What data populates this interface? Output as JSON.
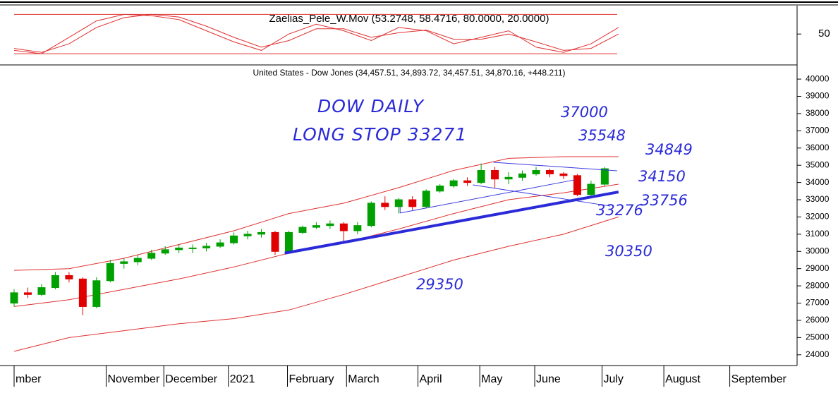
{
  "chart_data": [
    {
      "type": "line",
      "title": "Zaelias_Pele_W.Mov (53.2748, 58.4716, 80.0000, 20.0000)",
      "xlim": [
        0,
        57
      ],
      "ylim": [
        5,
        89
      ],
      "yticks": [
        50
      ],
      "levels": [
        80,
        20
      ],
      "level_color": "#e03030",
      "x": [
        0,
        2,
        4,
        6,
        8,
        10,
        12,
        14,
        16,
        18,
        20,
        22,
        24,
        26,
        28,
        30,
        32,
        34,
        36,
        38,
        40,
        42,
        44
      ],
      "series": [
        {
          "name": "fast",
          "color": "#e03030",
          "values": [
            25,
            20,
            45,
            70,
            80,
            78,
            72,
            55,
            38,
            25,
            50,
            65,
            55,
            40,
            60,
            55,
            35,
            45,
            55,
            30,
            22,
            35,
            60
          ]
        },
        {
          "name": "slow",
          "color": "#e03030",
          "values": [
            28,
            22,
            35,
            60,
            75,
            80,
            76,
            62,
            45,
            30,
            40,
            58,
            58,
            45,
            52,
            56,
            42,
            42,
            50,
            38,
            25,
            28,
            50
          ]
        }
      ]
    },
    {
      "type": "candlestick",
      "title": "United States - Dow Jones (34,457.51, 34,893.72, 34,457.51, 34,870.16, +448.211)",
      "xlim": [
        0,
        57
      ],
      "ylim": [
        23500,
        40700
      ],
      "yticks": [
        24000,
        25000,
        26000,
        27000,
        28000,
        29000,
        30000,
        31000,
        32000,
        33000,
        34000,
        35000,
        36000,
        37000,
        38000,
        39000,
        40000
      ],
      "xticks": [
        {
          "value": 0,
          "label": "mber"
        },
        {
          "value": 6.7,
          "label": "November"
        },
        {
          "value": 10.9,
          "label": "December"
        },
        {
          "value": 15.6,
          "label": "2021"
        },
        {
          "value": 19.9,
          "label": "February"
        },
        {
          "value": 24.2,
          "label": "March"
        },
        {
          "value": 29.4,
          "label": "April"
        },
        {
          "value": 33.9,
          "label": "May"
        },
        {
          "value": 37.9,
          "label": "June"
        },
        {
          "value": 42.8,
          "label": "July"
        },
        {
          "value": 47.3,
          "label": "August"
        },
        {
          "value": 52.1,
          "label": "September"
        }
      ],
      "up_color": "#00a000",
      "down_color": "#e00000",
      "candles": [
        [
          27000,
          27800,
          26800,
          27600
        ],
        [
          27600,
          27900,
          27300,
          27500
        ],
        [
          27500,
          28100,
          27400,
          27900
        ],
        [
          27900,
          28800,
          27800,
          28600
        ],
        [
          28600,
          28800,
          28200,
          28400
        ],
        [
          28400,
          28500,
          26300,
          26800
        ],
        [
          26800,
          28500,
          26700,
          28300
        ],
        [
          28300,
          29500,
          28200,
          29300
        ],
        [
          29300,
          29600,
          29000,
          29400
        ],
        [
          29400,
          29800,
          29200,
          29600
        ],
        [
          29600,
          30100,
          29500,
          29900
        ],
        [
          29900,
          30300,
          29800,
          30100
        ],
        [
          30100,
          30400,
          29900,
          30200
        ],
        [
          30200,
          30400,
          29900,
          30200
        ],
        [
          30200,
          30500,
          30000,
          30300
        ],
        [
          30300,
          30700,
          30200,
          30500
        ],
        [
          30500,
          31100,
          30400,
          30900
        ],
        [
          30900,
          31200,
          30700,
          31000
        ],
        [
          31000,
          31300,
          30800,
          31100
        ],
        [
          31100,
          31200,
          29800,
          30000
        ],
        [
          30000,
          31200,
          29900,
          31100
        ],
        [
          31100,
          31500,
          31000,
          31400
        ],
        [
          31400,
          31700,
          31300,
          31500
        ],
        [
          31500,
          31800,
          31300,
          31600
        ],
        [
          31600,
          31700,
          30600,
          31200
        ],
        [
          31200,
          31700,
          31000,
          31500
        ],
        [
          31500,
          32900,
          31400,
          32800
        ],
        [
          32800,
          33200,
          32400,
          32600
        ],
        [
          32600,
          33100,
          32200,
          33000
        ],
        [
          33000,
          33200,
          32400,
          32600
        ],
        [
          32600,
          33600,
          32500,
          33500
        ],
        [
          33500,
          33900,
          33400,
          33800
        ],
        [
          33800,
          34200,
          33700,
          34100
        ],
        [
          34100,
          34300,
          33800,
          34000
        ],
        [
          34000,
          35100,
          33900,
          34700
        ],
        [
          34700,
          34900,
          33700,
          34200
        ],
        [
          34200,
          34600,
          33900,
          34300
        ],
        [
          34300,
          34700,
          34100,
          34500
        ],
        [
          34500,
          34900,
          34400,
          34700
        ],
        [
          34700,
          34800,
          34300,
          34500
        ],
        [
          34500,
          34600,
          34200,
          34400
        ],
        [
          34400,
          34500,
          33200,
          33300
        ],
        [
          33300,
          34100,
          33200,
          33900
        ],
        [
          33900,
          34900,
          33800,
          34800
        ]
      ],
      "bands": {
        "color": "#e03030",
        "x": [
          0,
          4,
          8,
          12,
          16,
          20,
          24,
          28,
          32,
          36,
          40,
          44
        ],
        "series": [
          {
            "name": "upper",
            "values": [
              28900,
              29000,
              29600,
              30400,
              31200,
              32200,
              32800,
              33700,
              34700,
              35400,
              35500,
              35500
            ]
          },
          {
            "name": "middle",
            "values": [
              26800,
              27200,
              27800,
              28400,
              29100,
              29900,
              30500,
              31300,
              32200,
              33000,
              33400,
              33900
            ]
          },
          {
            "name": "lower",
            "values": [
              24200,
              25000,
              25400,
              25800,
              26100,
              26600,
              27500,
              28500,
              29500,
              30300,
              31000,
              32000
            ]
          }
        ]
      },
      "trendlines": [
        {
          "color": "#2a2ad8",
          "width": 4,
          "x": [
            19.7,
            44
          ],
          "y": [
            29900,
            33450
          ]
        },
        {
          "color": "#3a3ae0",
          "width": 1,
          "x": [
            34.9,
            43.9
          ],
          "y": [
            35170,
            34680
          ]
        },
        {
          "color": "#3a3ae0",
          "width": 1,
          "x": [
            28.1,
            40.8
          ],
          "y": [
            32230,
            34150
          ]
        },
        {
          "color": "#3a3ae0",
          "width": 1,
          "x": [
            33.4,
            43.4
          ],
          "y": [
            33860,
            32630
          ]
        },
        {
          "color": "#3a3ae0",
          "width": 1,
          "x": [
            28.1,
            28.1
          ],
          "y": [
            32230,
            32600
          ]
        }
      ],
      "annotations": [
        "DOW DAILY",
        "LONG STOP 33271",
        "37000",
        "35548",
        "34849",
        "34150",
        "33756",
        "33276",
        "30350",
        "29350"
      ]
    }
  ]
}
